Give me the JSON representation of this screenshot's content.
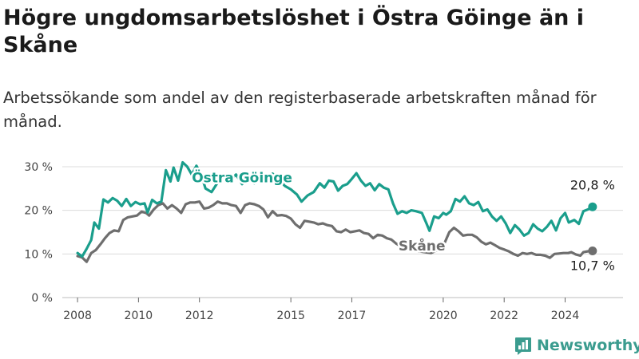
{
  "title": "Högre ungdomsarbetslöshet i Östra Göinge än i Skåne",
  "subtitle": "Arbetssökande som andel av den registerbaserade arbetskraften månad för månad.",
  "brand": "Newsworthy",
  "chart_data": {
    "type": "line",
    "y_tick_labels": [
      "0 %",
      "10 %",
      "20 %",
      "30 %"
    ],
    "y_ticks": [
      0,
      10,
      20,
      30
    ],
    "ylim": [
      0,
      32
    ],
    "xlim": [
      2007.5,
      2025.9
    ],
    "x_tick_labels": [
      "2008",
      "2010",
      "2012",
      "2015",
      "2017",
      "2020",
      "2022",
      "2024"
    ],
    "x_ticks": [
      2008,
      2010,
      2012,
      2015,
      2017,
      2020,
      2022,
      2024
    ],
    "grid": true,
    "series": [
      {
        "name": "Östra Göinge",
        "color": "#1a9e8c",
        "end_label": "20,8 %",
        "points": [
          [
            2008.0,
            10.2
          ],
          [
            2008.15,
            9.4
          ],
          [
            2008.3,
            11.2
          ],
          [
            2008.45,
            13.2
          ],
          [
            2008.55,
            17.2
          ],
          [
            2008.7,
            15.8
          ],
          [
            2008.85,
            22.5
          ],
          [
            2009.0,
            21.8
          ],
          [
            2009.15,
            22.8
          ],
          [
            2009.3,
            22.2
          ],
          [
            2009.45,
            21.0
          ],
          [
            2009.6,
            22.6
          ],
          [
            2009.75,
            21.0
          ],
          [
            2009.9,
            21.9
          ],
          [
            2010.05,
            21.4
          ],
          [
            2010.2,
            21.6
          ],
          [
            2010.3,
            19.5
          ],
          [
            2010.45,
            22.4
          ],
          [
            2010.6,
            21.6
          ],
          [
            2010.75,
            22.0
          ],
          [
            2010.9,
            29.2
          ],
          [
            2011.05,
            26.6
          ],
          [
            2011.15,
            29.8
          ],
          [
            2011.3,
            26.8
          ],
          [
            2011.45,
            31.0
          ],
          [
            2011.6,
            30.0
          ],
          [
            2011.75,
            28.2
          ],
          [
            2011.9,
            30.2
          ],
          [
            2012.05,
            28.3
          ],
          [
            2012.2,
            25.0
          ],
          [
            2012.4,
            24.2
          ],
          [
            2012.6,
            26.4
          ],
          [
            2012.8,
            27.8
          ],
          [
            2013.0,
            26.8
          ],
          [
            2013.2,
            28.2
          ],
          [
            2013.4,
            26.0
          ],
          [
            2013.6,
            27.8
          ],
          [
            2013.8,
            26.2
          ],
          [
            2014.0,
            28.5
          ],
          [
            2014.2,
            27.2
          ],
          [
            2014.4,
            28.4
          ],
          [
            2014.6,
            27.2
          ],
          [
            2014.8,
            25.6
          ],
          [
            2015.0,
            24.8
          ],
          [
            2015.2,
            23.6
          ],
          [
            2015.35,
            22.0
          ],
          [
            2015.55,
            23.4
          ],
          [
            2015.75,
            24.2
          ],
          [
            2015.95,
            26.2
          ],
          [
            2016.1,
            25.2
          ],
          [
            2016.25,
            26.8
          ],
          [
            2016.4,
            26.6
          ],
          [
            2016.55,
            24.5
          ],
          [
            2016.7,
            25.6
          ],
          [
            2016.85,
            26.0
          ],
          [
            2017.0,
            27.2
          ],
          [
            2017.15,
            28.5
          ],
          [
            2017.3,
            26.8
          ],
          [
            2017.45,
            25.6
          ],
          [
            2017.6,
            26.2
          ],
          [
            2017.75,
            24.6
          ],
          [
            2017.9,
            26.0
          ],
          [
            2018.05,
            25.2
          ],
          [
            2018.2,
            24.8
          ],
          [
            2018.35,
            21.6
          ],
          [
            2018.5,
            19.2
          ],
          [
            2018.65,
            19.8
          ],
          [
            2018.8,
            19.4
          ],
          [
            2018.95,
            20.0
          ],
          [
            2019.1,
            19.8
          ],
          [
            2019.3,
            19.4
          ],
          [
            2019.45,
            17.0
          ],
          [
            2019.55,
            15.3
          ],
          [
            2019.7,
            18.6
          ],
          [
            2019.85,
            18.2
          ],
          [
            2020.0,
            19.4
          ],
          [
            2020.1,
            19.0
          ],
          [
            2020.25,
            19.8
          ],
          [
            2020.4,
            22.6
          ],
          [
            2020.55,
            22.0
          ],
          [
            2020.7,
            23.2
          ],
          [
            2020.85,
            21.6
          ],
          [
            2021.0,
            21.2
          ],
          [
            2021.15,
            21.9
          ],
          [
            2021.3,
            19.8
          ],
          [
            2021.45,
            20.2
          ],
          [
            2021.6,
            18.6
          ],
          [
            2021.75,
            17.6
          ],
          [
            2021.9,
            18.6
          ],
          [
            2022.05,
            17.0
          ],
          [
            2022.2,
            14.8
          ],
          [
            2022.35,
            16.6
          ],
          [
            2022.5,
            15.6
          ],
          [
            2022.65,
            14.2
          ],
          [
            2022.8,
            14.8
          ],
          [
            2022.95,
            16.8
          ],
          [
            2023.1,
            15.8
          ],
          [
            2023.25,
            15.2
          ],
          [
            2023.4,
            16.2
          ],
          [
            2023.55,
            17.6
          ],
          [
            2023.7,
            15.4
          ],
          [
            2023.85,
            18.2
          ],
          [
            2024.0,
            19.4
          ],
          [
            2024.12,
            17.2
          ],
          [
            2024.3,
            17.8
          ],
          [
            2024.45,
            16.9
          ],
          [
            2024.6,
            19.8
          ],
          [
            2024.75,
            20.2
          ],
          [
            2024.9,
            20.8
          ]
        ]
      },
      {
        "name": "Skåne",
        "color": "#6e6e6e",
        "end_label": "10,7 %",
        "points": [
          [
            2008.0,
            9.5
          ],
          [
            2008.15,
            9.2
          ],
          [
            2008.3,
            8.2
          ],
          [
            2008.45,
            10.2
          ],
          [
            2008.6,
            10.9
          ],
          [
            2008.75,
            12.2
          ],
          [
            2008.9,
            13.6
          ],
          [
            2009.05,
            14.8
          ],
          [
            2009.2,
            15.4
          ],
          [
            2009.35,
            15.2
          ],
          [
            2009.5,
            17.8
          ],
          [
            2009.65,
            18.4
          ],
          [
            2009.8,
            18.6
          ],
          [
            2009.95,
            18.8
          ],
          [
            2010.1,
            19.7
          ],
          [
            2010.25,
            19.4
          ],
          [
            2010.35,
            18.8
          ],
          [
            2010.5,
            20.2
          ],
          [
            2010.65,
            21.2
          ],
          [
            2010.8,
            21.6
          ],
          [
            2010.95,
            20.4
          ],
          [
            2011.1,
            21.2
          ],
          [
            2011.25,
            20.4
          ],
          [
            2011.4,
            19.4
          ],
          [
            2011.55,
            21.4
          ],
          [
            2011.7,
            21.8
          ],
          [
            2011.85,
            21.8
          ],
          [
            2012.0,
            22.0
          ],
          [
            2012.15,
            20.4
          ],
          [
            2012.3,
            20.6
          ],
          [
            2012.45,
            21.2
          ],
          [
            2012.6,
            22.0
          ],
          [
            2012.75,
            21.6
          ],
          [
            2012.9,
            21.6
          ],
          [
            2013.05,
            21.2
          ],
          [
            2013.2,
            21.0
          ],
          [
            2013.35,
            19.4
          ],
          [
            2013.5,
            21.2
          ],
          [
            2013.65,
            21.6
          ],
          [
            2013.8,
            21.4
          ],
          [
            2013.95,
            21.0
          ],
          [
            2014.1,
            20.2
          ],
          [
            2014.25,
            18.4
          ],
          [
            2014.4,
            19.8
          ],
          [
            2014.55,
            18.8
          ],
          [
            2014.7,
            18.9
          ],
          [
            2014.85,
            18.7
          ],
          [
            2015.0,
            18.1
          ],
          [
            2015.15,
            16.8
          ],
          [
            2015.3,
            16.0
          ],
          [
            2015.45,
            17.6
          ],
          [
            2015.6,
            17.4
          ],
          [
            2015.75,
            17.2
          ],
          [
            2015.9,
            16.8
          ],
          [
            2016.05,
            17.0
          ],
          [
            2016.2,
            16.6
          ],
          [
            2016.35,
            16.4
          ],
          [
            2016.5,
            15.2
          ],
          [
            2016.65,
            15.0
          ],
          [
            2016.8,
            15.6
          ],
          [
            2016.95,
            15.0
          ],
          [
            2017.1,
            15.2
          ],
          [
            2017.25,
            15.4
          ],
          [
            2017.4,
            14.8
          ],
          [
            2017.55,
            14.6
          ],
          [
            2017.7,
            13.6
          ],
          [
            2017.85,
            14.4
          ],
          [
            2018.0,
            14.2
          ],
          [
            2018.15,
            13.6
          ],
          [
            2018.3,
            13.3
          ],
          [
            2018.45,
            12.4
          ],
          [
            2018.6,
            11.8
          ],
          [
            2018.75,
            11.4
          ],
          [
            2019.0,
            10.9
          ],
          [
            2019.3,
            10.5
          ],
          [
            2019.6,
            10.2
          ],
          [
            2019.85,
            11.0
          ],
          [
            2020.05,
            12.6
          ],
          [
            2020.2,
            15.0
          ],
          [
            2020.35,
            16.0
          ],
          [
            2020.5,
            15.2
          ],
          [
            2020.65,
            14.2
          ],
          [
            2020.8,
            14.4
          ],
          [
            2020.95,
            14.4
          ],
          [
            2021.1,
            13.8
          ],
          [
            2021.25,
            12.8
          ],
          [
            2021.4,
            12.2
          ],
          [
            2021.55,
            12.6
          ],
          [
            2021.7,
            12.0
          ],
          [
            2021.85,
            11.4
          ],
          [
            2022.0,
            11.0
          ],
          [
            2022.15,
            10.6
          ],
          [
            2022.3,
            10.0
          ],
          [
            2022.45,
            9.6
          ],
          [
            2022.6,
            10.2
          ],
          [
            2022.75,
            10.0
          ],
          [
            2022.9,
            10.2
          ],
          [
            2023.05,
            9.8
          ],
          [
            2023.2,
            9.8
          ],
          [
            2023.35,
            9.6
          ],
          [
            2023.5,
            9.1
          ],
          [
            2023.65,
            10.0
          ],
          [
            2023.8,
            10.1
          ],
          [
            2023.95,
            10.2
          ],
          [
            2024.1,
            10.2
          ],
          [
            2024.2,
            10.4
          ],
          [
            2024.35,
            9.9
          ],
          [
            2024.5,
            9.6
          ],
          [
            2024.6,
            10.4
          ],
          [
            2024.75,
            10.6
          ],
          [
            2024.9,
            10.7
          ]
        ]
      }
    ]
  }
}
